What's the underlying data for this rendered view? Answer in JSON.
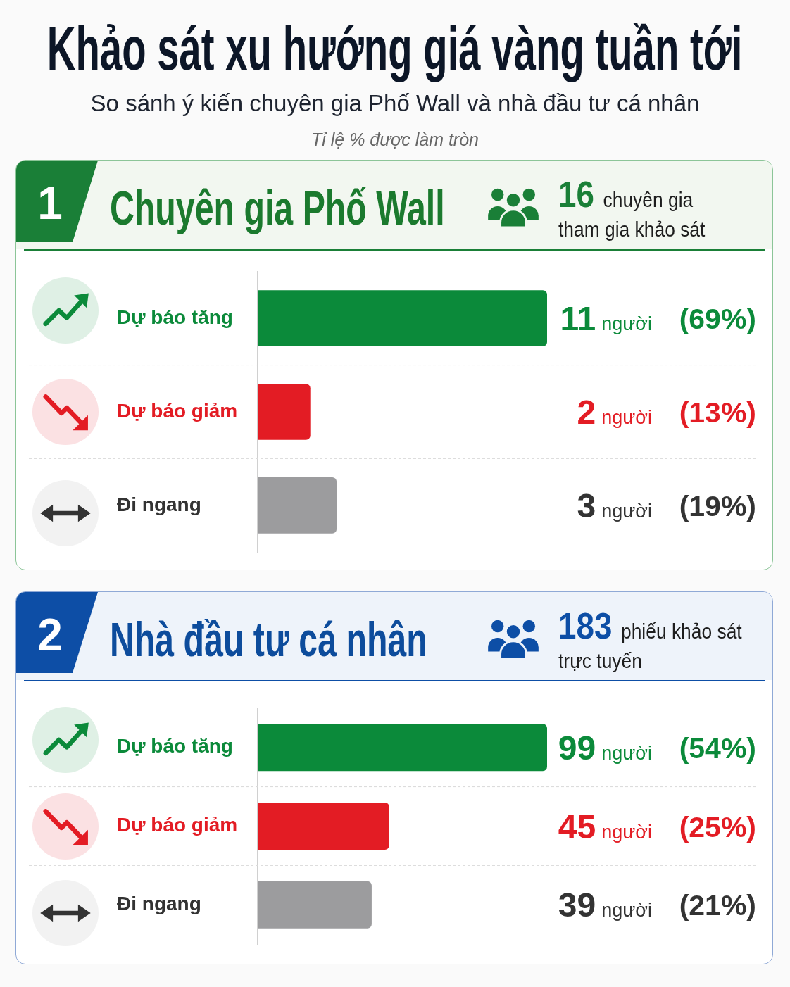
{
  "chart_data": [
    {
      "type": "other",
      "title": "Khảo sát xu hướng giá vàng tuần tới",
      "subtitle": "So sánh ý kiến chuyên gia Phố Wall và nhà đầu tư cá nhân",
      "annotations": [
        "Tỉ lệ % được làm tròn"
      ]
    },
    {
      "type": "bar",
      "orientation": "horizontal",
      "title": "Chuyên gia Phố Wall",
      "subtitle": "16 chuyên gia\ntham gia khảo sát",
      "annotations": [
        "1",
        "(69%)",
        "(13%)",
        "(19%)"
      ],
      "categories": [
        "Dự báo tăng",
        "Dự báo giảm",
        "Đi ngang"
      ],
      "values": [
        11,
        2,
        3
      ],
      "colors": [
        "#0b8a3a",
        "#e31c24",
        "#9c9c9e"
      ],
      "value_labels": [
        "11 người",
        "2 người",
        "3 người"
      ],
      "grid": "y",
      "tick_labels": "y"
    },
    {
      "type": "bar",
      "orientation": "horizontal",
      "title": "Nhà đầu tư cá nhân",
      "subtitle": "183 phiếu khảo sát\ntrực tuyến",
      "annotations": [
        "2",
        "(54%)",
        "(25%)",
        "(21%)"
      ],
      "categories": [
        "Dự báo tăng",
        "Dự báo giảm",
        "Đi ngang"
      ],
      "values": [
        99,
        45,
        39
      ],
      "colors": [
        "#0b8a3a",
        "#e31c24",
        "#9c9c9e"
      ],
      "value_labels": [
        "99 người",
        "45 người",
        "39 người"
      ],
      "grid": "y",
      "tick_labels": "y"
    }
  ]
}
